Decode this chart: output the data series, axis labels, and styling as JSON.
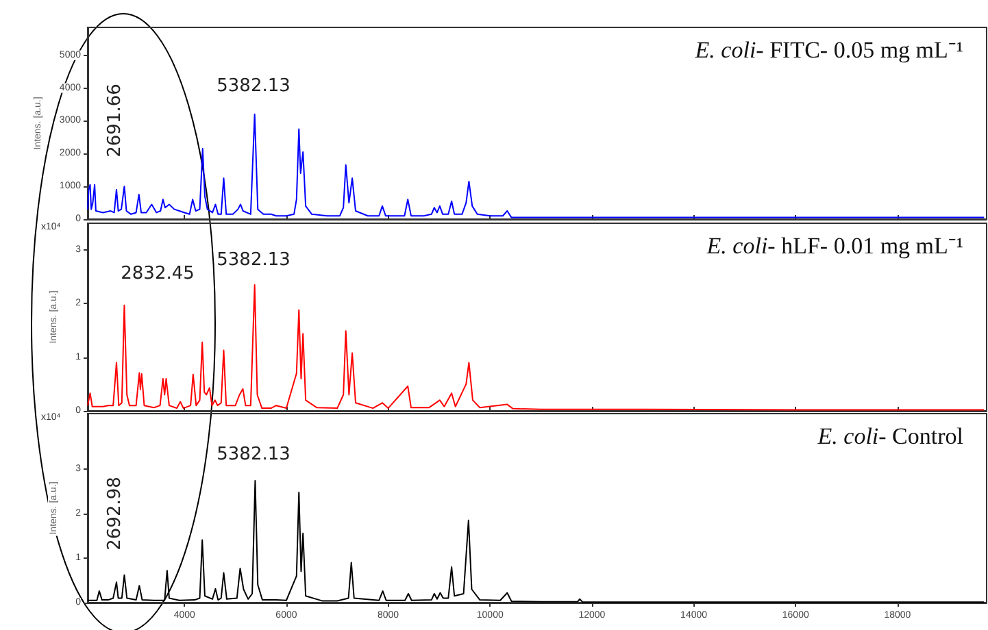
{
  "chart_data": [
    {
      "type": "line",
      "title": "E. coli- FITC- 0.05 mg mL⁻¹",
      "ylabel": "Intens. [a.u.]",
      "color": "#0000ff",
      "xlim": [
        2100,
        19750
      ],
      "xticks": [
        4000,
        6000,
        8000,
        10000,
        12000,
        14000,
        16000,
        18000
      ],
      "ylim": [
        0,
        5850
      ],
      "yticks": [
        0,
        1000,
        2000,
        3000,
        4000,
        5000
      ],
      "tick_labels": "y",
      "annotations": [
        "2691.66",
        "5382.13"
      ],
      "x": [
        2100,
        2120,
        2147,
        2170,
        2200,
        2236,
        2260,
        2400,
        2550,
        2620,
        2665,
        2700,
        2760,
        2819,
        2860,
        2950,
        3050,
        3106,
        3150,
        3250,
        3356,
        3450,
        3530,
        3578,
        3620,
        3700,
        3800,
        3900,
        4000,
        4100,
        4161,
        4220,
        4300,
        4357,
        4400,
        4450,
        4550,
        4609,
        4660,
        4720,
        4770,
        4820,
        4950,
        5050,
        5100,
        5150,
        5300,
        5378,
        5440,
        5550,
        5700,
        5800,
        6000,
        6150,
        6200,
        6247,
        6280,
        6327,
        6380,
        6500,
        6800,
        7050,
        7120,
        7168,
        7230,
        7294,
        7360,
        7600,
        7820,
        7885,
        7950,
        8200,
        8320,
        8385,
        8450,
        8700,
        8850,
        8905,
        8960,
        9013,
        9070,
        9180,
        9245,
        9300,
        9450,
        9530,
        9585,
        9650,
        9750,
        10000,
        10250,
        10337,
        10420,
        11000,
        13000,
        16000,
        19700
      ],
      "values": [
        300,
        900,
        1050,
        300,
        500,
        1050,
        250,
        200,
        250,
        200,
        900,
        250,
        300,
        1000,
        250,
        150,
        200,
        750,
        200,
        200,
        450,
        200,
        250,
        600,
        350,
        450,
        300,
        250,
        200,
        150,
        600,
        250,
        300,
        2150,
        700,
        300,
        200,
        450,
        150,
        150,
        1250,
        150,
        150,
        300,
        450,
        250,
        150,
        3200,
        300,
        150,
        150,
        100,
        100,
        150,
        600,
        2750,
        1400,
        2050,
        400,
        150,
        100,
        100,
        350,
        1650,
        500,
        1250,
        250,
        100,
        100,
        400,
        100,
        100,
        100,
        600,
        100,
        100,
        150,
        350,
        200,
        400,
        150,
        150,
        550,
        150,
        150,
        500,
        1150,
        400,
        150,
        100,
        100,
        250,
        50,
        50,
        50,
        50,
        50
      ]
    },
    {
      "type": "line",
      "title": "E. coli- hLF- 0.01 mg mL⁻¹",
      "ylabel": "Intens. [a.u.]",
      "color": "#ff0000",
      "xlim": [
        2100,
        19750
      ],
      "xticks": [
        4000,
        6000,
        8000,
        10000,
        12000,
        14000,
        16000,
        18000
      ],
      "ylim": [
        0,
        3.5
      ],
      "yticks": [
        0,
        1,
        2,
        3
      ],
      "tick_labels": "y",
      "annotations": [
        "x10⁴",
        "2832.45",
        "5382.13"
      ],
      "x": [
        2100,
        2147,
        2190,
        2400,
        2500,
        2600,
        2665,
        2710,
        2770,
        2819,
        2870,
        2920,
        3050,
        3114,
        3135,
        3160,
        3210,
        3400,
        3520,
        3578,
        3610,
        3640,
        3700,
        3850,
        3919,
        3980,
        4120,
        4170,
        4230,
        4300,
        4349,
        4390,
        4430,
        4492,
        4540,
        4600,
        4650,
        4720,
        4770,
        4820,
        5000,
        5080,
        5146,
        5200,
        5300,
        5378,
        5430,
        5520,
        5700,
        5800,
        6000,
        6200,
        6247,
        6290,
        6327,
        6380,
        6600,
        7000,
        7120,
        7168,
        7230,
        7294,
        7360,
        7700,
        7885,
        8000,
        8385,
        8450,
        8800,
        9013,
        9100,
        9245,
        9320,
        9530,
        9585,
        9660,
        9800,
        10337,
        10450,
        11000,
        13000,
        16000,
        19700
      ],
      "values": [
        0.1,
        0.33,
        0.08,
        0.08,
        0.1,
        0.1,
        0.9,
        0.1,
        0.15,
        1.97,
        0.3,
        0.1,
        0.1,
        0.71,
        0.4,
        0.69,
        0.1,
        0.06,
        0.1,
        0.6,
        0.3,
        0.6,
        0.1,
        0.05,
        0.17,
        0.05,
        0.1,
        0.68,
        0.1,
        0.2,
        1.28,
        0.35,
        0.3,
        0.43,
        0.1,
        0.2,
        0.1,
        0.15,
        1.13,
        0.1,
        0.1,
        0.3,
        0.41,
        0.1,
        0.1,
        2.35,
        0.3,
        0.05,
        0.05,
        0.1,
        0.05,
        0.7,
        1.88,
        0.6,
        1.44,
        0.2,
        0.06,
        0.05,
        0.3,
        1.49,
        0.3,
        1.08,
        0.15,
        0.05,
        0.15,
        0.05,
        0.46,
        0.06,
        0.06,
        0.2,
        0.08,
        0.33,
        0.08,
        0.5,
        0.9,
        0.2,
        0.06,
        0.12,
        0.04,
        0.03,
        0.03,
        0.02,
        0.02
      ]
    },
    {
      "type": "line",
      "title": "E. coli- Control",
      "ylabel": "Intens. [a.u.]",
      "color": "#000000",
      "xlim": [
        2100,
        19750
      ],
      "xticks": [
        4000,
        6000,
        8000,
        10000,
        12000,
        14000,
        16000,
        18000
      ],
      "ylim": [
        0,
        4.25
      ],
      "yticks": [
        0,
        1,
        2,
        3
      ],
      "annotations": [
        "x10⁴",
        "2692.98",
        "5382.13"
      ],
      "x": [
        2100,
        2280,
        2327,
        2380,
        2500,
        2600,
        2665,
        2700,
        2770,
        2819,
        2870,
        3050,
        3114,
        3170,
        3400,
        3610,
        3659,
        3700,
        3900,
        4200,
        4300,
        4349,
        4400,
        4550,
        4609,
        4660,
        4720,
        4770,
        4830,
        5030,
        5093,
        5160,
        5250,
        5330,
        5388,
        5440,
        5530,
        5800,
        6000,
        6200,
        6247,
        6290,
        6327,
        6380,
        6700,
        7000,
        7220,
        7276,
        7330,
        7820,
        7893,
        7960,
        8330,
        8395,
        8460,
        8850,
        8905,
        8960,
        9021,
        9080,
        9180,
        9245,
        9300,
        9480,
        9577,
        9640,
        9800,
        10200,
        10337,
        10420,
        11000,
        11720,
        11760,
        11820,
        13000,
        16000,
        19700
      ],
      "values": [
        0.05,
        0.05,
        0.26,
        0.06,
        0.06,
        0.1,
        0.46,
        0.1,
        0.1,
        0.62,
        0.1,
        0.06,
        0.38,
        0.06,
        0.05,
        0.05,
        0.72,
        0.1,
        0.05,
        0.06,
        0.1,
        1.41,
        0.15,
        0.08,
        0.31,
        0.06,
        0.1,
        0.67,
        0.08,
        0.1,
        0.77,
        0.3,
        0.08,
        0.2,
        2.74,
        0.4,
        0.06,
        0.06,
        0.05,
        0.6,
        2.48,
        0.7,
        1.56,
        0.15,
        0.04,
        0.04,
        0.1,
        0.9,
        0.1,
        0.05,
        0.26,
        0.05,
        0.05,
        0.2,
        0.05,
        0.06,
        0.2,
        0.08,
        0.22,
        0.1,
        0.1,
        0.8,
        0.15,
        0.2,
        1.85,
        0.3,
        0.06,
        0.05,
        0.22,
        0.03,
        0.02,
        0.02,
        0.08,
        0.01,
        0.01,
        0.01,
        0.01
      ]
    }
  ]
}
